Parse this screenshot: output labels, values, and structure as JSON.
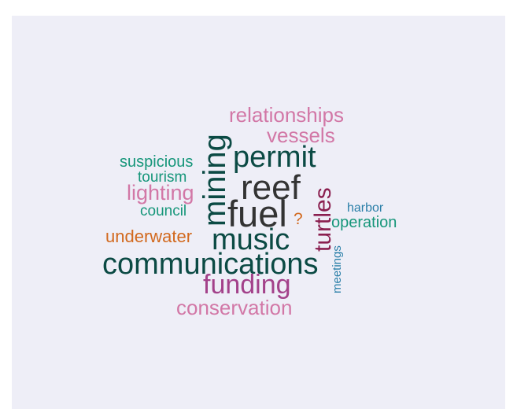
{
  "colors": {
    "panel_bg": "#eeeef7",
    "dark_gray": "#333333",
    "dark_teal": "#0b4a44",
    "pink": "#d277a6",
    "magenta": "#a3418a",
    "maroon": "#8a1f4f",
    "teal": "#16967a",
    "orange": "#d2691e",
    "blue": "#2a7fa8"
  },
  "words": {
    "relationships": "relationships",
    "vessels": "vessels",
    "permit": "permit",
    "suspicious": "suspicious",
    "mining": "mining",
    "tourism": "tourism",
    "reef": "reef",
    "lighting": "lighting",
    "turtles": "turtles",
    "harbor": "harbor",
    "council": "council",
    "fuel": "fuel",
    "question": "?",
    "operation": "operation",
    "underwater": "underwater",
    "music": "music",
    "meetings": "meetings",
    "communications": "communications",
    "funding": "funding",
    "conservation": "conservation"
  }
}
